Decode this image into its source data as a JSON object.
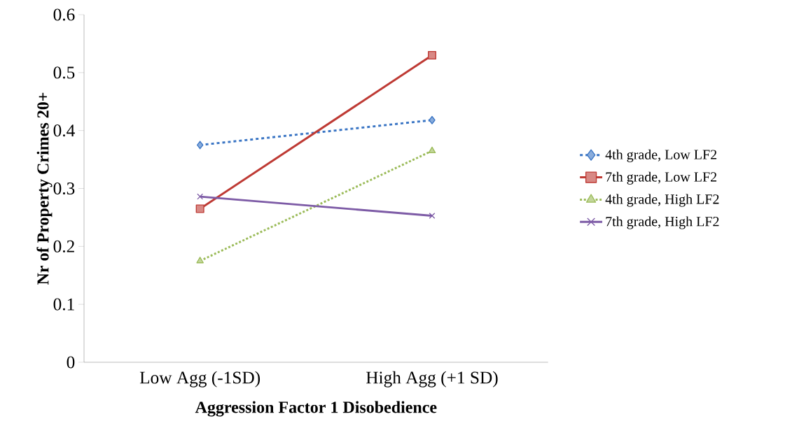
{
  "chart_data": {
    "type": "line",
    "xlabel": "Aggression Factor 1 Disobedience",
    "ylabel": "Nr of Property Crimes 20+",
    "categories": [
      "Low Agg (-1SD)",
      "High Agg (+1 SD)"
    ],
    "series": [
      {
        "name": "4th grade, Low LF2",
        "color": "#3a75c4",
        "values": [
          0.375,
          0.418
        ],
        "marker": "diamond",
        "line_style": "dashed"
      },
      {
        "name": "7th grade, Low LF2",
        "color": "#be3a34",
        "values": [
          0.265,
          0.53
        ],
        "marker": "square",
        "line_style": "solid"
      },
      {
        "name": "4th grade, High LF2",
        "color": "#9bbb59",
        "values": [
          0.175,
          0.365
        ],
        "marker": "triangle",
        "line_style": "dotted"
      },
      {
        "name": "7th grade, High LF2",
        "color": "#7d5ba6",
        "values": [
          0.286,
          0.253
        ],
        "marker": "cross",
        "line_style": "solid"
      }
    ],
    "ylim": [
      0,
      0.6
    ],
    "yticks": [
      0,
      0.1,
      0.2,
      0.3,
      0.4,
      0.5,
      0.6
    ],
    "grid": false,
    "legend": "right"
  }
}
